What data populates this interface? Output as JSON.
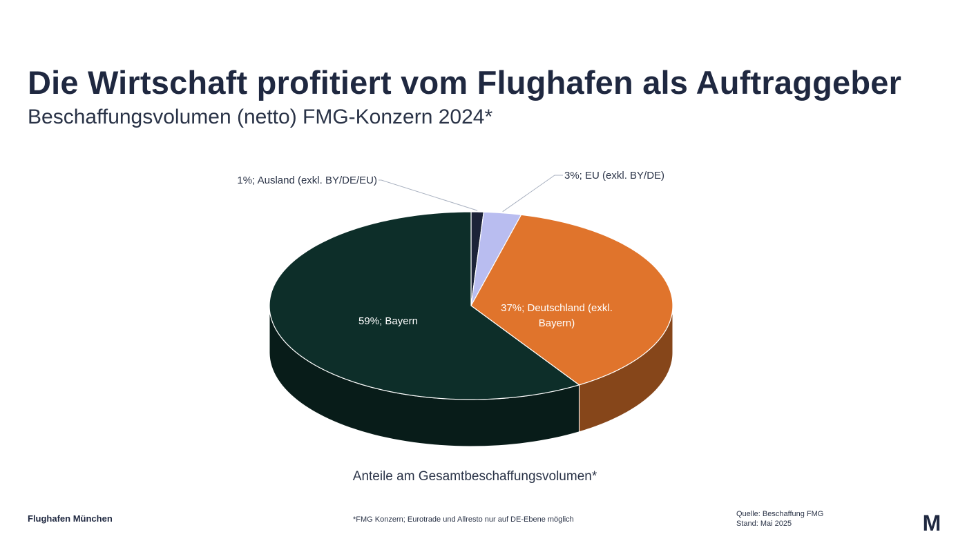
{
  "slide": {
    "title": "Die Wirtschaft profitiert vom Flughafen als Auftraggeber",
    "subtitle": "Beschaffungsvolumen (netto) FMG-Konzern 2024*",
    "caption": "Anteile am Gesamtbeschaffungsvolumen*",
    "brand": "Flughafen München",
    "footnote": "*FMG Konzern; Eurotrade und Allresto nur auf DE-Ebene möglich",
    "source_line1": "Quelle: Beschaffung FMG",
    "source_line2": "Stand: Mai 2025",
    "logo_letter": "M"
  },
  "chart_data": {
    "type": "pie",
    "style": "3d",
    "title": "Beschaffungsvolumen (netto) FMG-Konzern 2024*",
    "unit": "%",
    "slices": [
      {
        "label": "Ausland (exkl. BY/DE/EU)",
        "display": "1%; Ausland (exkl. BY/DE/EU)",
        "value": 1,
        "color": "#1c2338",
        "label_position": "outside"
      },
      {
        "label": "EU (exkl. BY/DE)",
        "display": "3%; EU (exkl. BY/DE)",
        "value": 3,
        "color": "#b9bdf0",
        "label_position": "outside"
      },
      {
        "label": "Deutschland (exkl. Bayern)",
        "display_lines": [
          "37%; Deutschland (exkl.",
          "Bayern)"
        ],
        "value": 37,
        "color": "#e0742c",
        "label_position": "inside"
      },
      {
        "label": "Bayern",
        "display": "59%; Bayern",
        "value": 59,
        "color": "#0d2e29",
        "label_position": "inside"
      }
    ]
  }
}
